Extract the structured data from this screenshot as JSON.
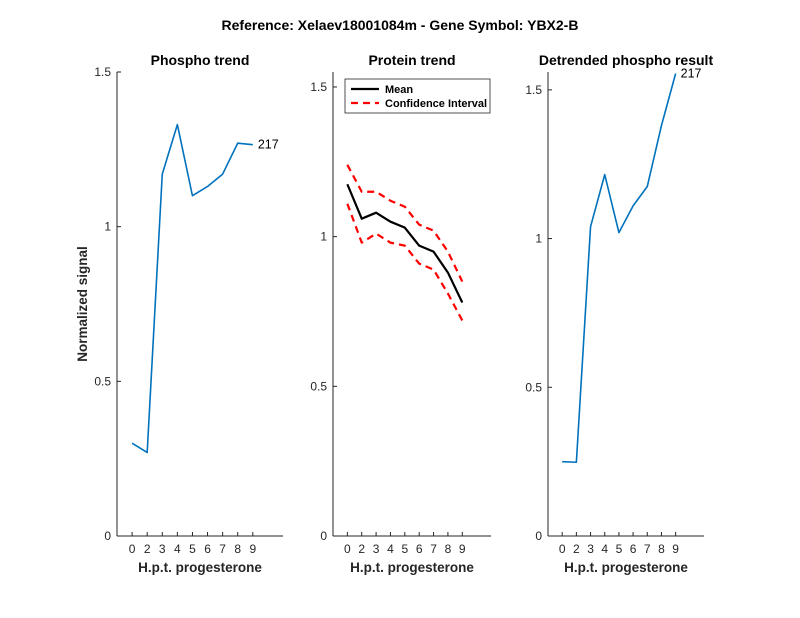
{
  "figure": {
    "suptitle": "Reference:  Xelaev18001084m - Gene Symbol:  YBX2-B"
  },
  "colors": {
    "phospho_line": "#0072BD",
    "mean_line": "#000000",
    "ci_line": "#FF0000",
    "axis": "#262626"
  },
  "chart_data": [
    {
      "type": "line",
      "title": "Phospho trend",
      "xlabel": "H.p.t. progesterone",
      "ylabel": "Normalized signal",
      "xlim": [
        -1,
        10
      ],
      "ylim": [
        0,
        1.5
      ],
      "x_ticks": [
        "0",
        "2",
        "3",
        "4",
        "5",
        "6",
        "7",
        "8",
        "9"
      ],
      "y_ticks": [
        "0",
        "0.5",
        "1",
        "1.5"
      ],
      "series": [
        {
          "x": [
            0,
            1,
            2,
            3,
            4,
            5,
            6,
            7,
            8
          ],
          "y": [
            0.3,
            0.27,
            1.17,
            1.33,
            1.1,
            1.13,
            1.17,
            1.27,
            1.265
          ]
        }
      ],
      "annotation": "217"
    },
    {
      "type": "line",
      "title": "Protein trend",
      "xlabel": "H.p.t. progesterone",
      "ylabel": "",
      "xlim": [
        -1,
        10
      ],
      "ylim": [
        0,
        1.55
      ],
      "x_ticks": [
        "0",
        "2",
        "3",
        "4",
        "5",
        "6",
        "7",
        "8",
        "9"
      ],
      "y_ticks": [
        "0",
        "0.5",
        "1",
        "1.5"
      ],
      "legend": {
        "location": "top-left",
        "entries": [
          "Mean",
          "Confidence Interval"
        ]
      },
      "series": [
        {
          "name": "Mean",
          "x": [
            0,
            1,
            2,
            3,
            4,
            5,
            6,
            7,
            8
          ],
          "y": [
            1.175,
            1.06,
            1.08,
            1.05,
            1.03,
            0.97,
            0.95,
            0.88,
            0.78
          ]
        },
        {
          "name": "Confidence Interval",
          "x": [
            0,
            1,
            2,
            3,
            4,
            5,
            6,
            7,
            8
          ],
          "y": [
            1.24,
            1.15,
            1.15,
            1.12,
            1.1,
            1.04,
            1.02,
            0.95,
            0.85
          ]
        },
        {
          "name": "Confidence Interval",
          "x": [
            0,
            1,
            2,
            3,
            4,
            5,
            6,
            7,
            8
          ],
          "y": [
            1.11,
            0.98,
            1.01,
            0.98,
            0.97,
            0.91,
            0.89,
            0.81,
            0.72
          ]
        }
      ]
    },
    {
      "type": "line",
      "title": "Detrended phospho result",
      "xlabel": "H.p.t. progesterone",
      "ylabel": "",
      "xlim": [
        -1,
        10
      ],
      "ylim": [
        0,
        1.56
      ],
      "x_ticks": [
        "0",
        "2",
        "3",
        "4",
        "5",
        "6",
        "7",
        "8",
        "9"
      ],
      "y_ticks": [
        "0",
        "0.5",
        "1",
        "1.5"
      ],
      "series": [
        {
          "x": [
            0,
            1,
            2,
            3,
            4,
            5,
            6,
            7,
            8
          ],
          "y": [
            0.25,
            0.248,
            1.04,
            1.215,
            1.02,
            1.11,
            1.175,
            1.38,
            1.555
          ]
        }
      ],
      "annotation": "217"
    }
  ]
}
